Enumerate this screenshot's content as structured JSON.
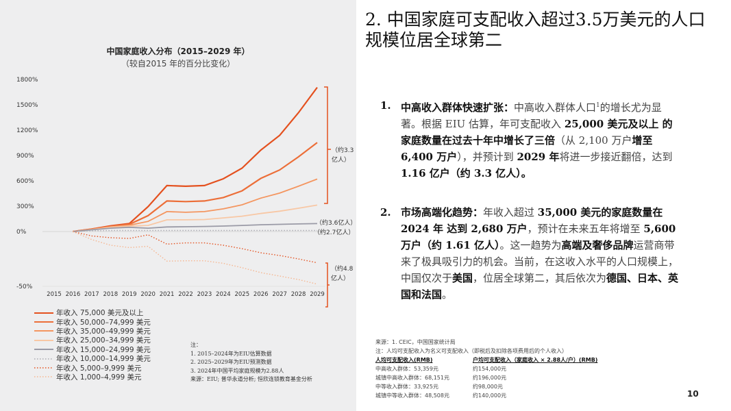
{
  "heading": "2. 中国家庭可支配收入超过3.5万美元的人口规模位居全球第二",
  "bullets": [
    {
      "num": "1.",
      "segments": [
        {
          "t": "中高收入群体快速扩张：",
          "b": true
        },
        {
          "t": "中高收入群体人口"
        },
        {
          "t": "1",
          "sup": true
        },
        {
          "t": "的增长尤为显著。根据 EIU 估算，年可支配收入 "
        },
        {
          "t": "25,000 美元及以上 的家庭数量在过去十年中增长了三倍",
          "b": true
        },
        {
          "t": "（从 2,100 万户"
        },
        {
          "t": "增至 6,400 万户",
          "b": true
        },
        {
          "t": "），并预计到 "
        },
        {
          "t": "2029 年",
          "b": true
        },
        {
          "t": "将进一步接近翻倍，达到 "
        },
        {
          "t": "1.16 亿户（约 3.3 亿人）。",
          "b": true
        }
      ]
    },
    {
      "num": "2.",
      "segments": [
        {
          "t": "市场高端化趋势：",
          "b": true
        },
        {
          "t": "年收入超过 "
        },
        {
          "t": "35,000 美元的家庭数量在 2024 年 达到 2,680 万户",
          "b": true
        },
        {
          "t": "，预计在未来五年将增至 "
        },
        {
          "t": "5,600 万户（约 1.61 亿人）",
          "b": true
        },
        {
          "t": "。这一趋势为"
        },
        {
          "t": "高端及奢侈品牌",
          "b": true
        },
        {
          "t": "运营商带来了极具吸引力的机会。当前，在这收入水平的人口规模上，中国仅次于"
        },
        {
          "t": "美国",
          "b": true
        },
        {
          "t": "，位居全球第二，其后依次为"
        },
        {
          "t": "德国、日本、英国和法国",
          "b": true
        },
        {
          "t": "。"
        }
      ]
    }
  ],
  "notes": {
    "title": "注：",
    "items": [
      "1.   2015–2024年为EIU估算数据",
      "2.   2025–2029年为EIU预测数据",
      "3.   2024年中国平均家庭规模为2.88人"
    ],
    "source": "来源：EIU; 普华永道分析; 恒欣连锁教育基金分析"
  },
  "sources": {
    "line1": "来源：1. CEIC，中国国家统计局",
    "line2": "注：人均可支配收入为名义可支配收入（即税后及扣除各项费用后的个人收入）",
    "col1_header": "人均可支配收入(RMB)",
    "col2_header": "户均可支配收入（家庭收入 × 2.88人/户）(RMB)",
    "rows": [
      [
        "中高收入群体：53,359元",
        "约154,000元"
      ],
      [
        "城镇中高收入群体：68,151元",
        "约196,000元"
      ],
      [
        "中等收入群体：33,925元",
        "约98,000元"
      ],
      [
        "城镇中等收入群体：48,508元",
        "约140,000元"
      ]
    ]
  },
  "page_number": "10",
  "chart_data": {
    "type": "line",
    "title": "中国家庭收入分布（2015–2029 年）",
    "subtitle": "（较自2015 年的百分比变化）",
    "x": [
      2016,
      2017,
      2018,
      2019,
      2020,
      2021,
      2022,
      2023,
      2024,
      2025,
      2026,
      2027,
      2028,
      2029
    ],
    "x_ticks": [
      "2015",
      "2016",
      "2017",
      "2018",
      "2019",
      "2020",
      "2021",
      "2022",
      "2023",
      "2024",
      "2025",
      "2026",
      "2027",
      "2028",
      "2029"
    ],
    "y_ticks": [
      "1800%",
      "1500%",
      "1200%",
      "900%",
      "600%",
      "300%",
      "0%",
      "-50%"
    ],
    "y_scale": "non-linear (0% to 1800% compressed above, 0% to -50% expanded below)",
    "ylim": [
      -50,
      1800
    ],
    "grid": false,
    "legend_position": "bottom-left",
    "series": [
      {
        "name": "年收入 75,000 美元及以上",
        "color": "#e4501e",
        "style": "solid",
        "values": [
          0,
          30,
          67,
          94,
          295,
          544,
          536,
          544,
          624,
          750,
          964,
          1138,
          1406,
          1706
        ]
      },
      {
        "name": "年收入 50,000–74,999 美元",
        "color": "#ec6e38",
        "style": "solid",
        "values": [
          0,
          28,
          60,
          85,
          188,
          362,
          354,
          362,
          402,
          482,
          629,
          729,
          884,
          1053
        ]
      },
      {
        "name": "年收入 35,000–49,999 美元",
        "color": "#f4955f",
        "style": "solid",
        "values": [
          0,
          25,
          55,
          75,
          120,
          236,
          228,
          236,
          268,
          316,
          396,
          455,
          536,
          621
        ]
      },
      {
        "name": "年收入 25,000–34,999 美元",
        "color": "#f8c7a4",
        "style": "solid",
        "values": [
          0,
          22,
          50,
          65,
          72,
          139,
          139,
          142,
          161,
          182,
          214,
          241,
          276,
          313
        ]
      },
      {
        "name": "年收入 15,000–24,999 美元",
        "color": "#9a9aa6",
        "style": "solid",
        "values": [
          0,
          20,
          40,
          50,
          40,
          54,
          57,
          60,
          65,
          72,
          80,
          85,
          90,
          94
        ]
      },
      {
        "name": "年收入 10,000–14,999 美元",
        "color": "#a9a9b0",
        "style": "dotted",
        "values": [
          0,
          10,
          12,
          13,
          13,
          13,
          13,
          13,
          13,
          13,
          13,
          13,
          13,
          13
        ]
      },
      {
        "name": "年收入 5,000–9,999 美元",
        "color": "#e4501e",
        "style": "dotted",
        "values": [
          0,
          -4,
          -5.6,
          -6.3,
          -3,
          -11.5,
          -10.4,
          -10.4,
          -12.5,
          -15.6,
          -19.4,
          -21.9,
          -25,
          -28.5
        ]
      },
      {
        "name": "年收入 1,000–4,999 美元",
        "color": "#f6b58f",
        "style": "dotted",
        "values": [
          0,
          -7.3,
          -12.5,
          -14.6,
          -13.5,
          -27,
          -26.7,
          -26.7,
          -29,
          -33,
          -37.5,
          -40.6,
          -43.8,
          -48
        ]
      }
    ],
    "annotations": [
      "（约3.3亿人）",
      "（约3.6亿人）",
      "（约2.7亿人）",
      "（约4.8亿人）"
    ]
  }
}
